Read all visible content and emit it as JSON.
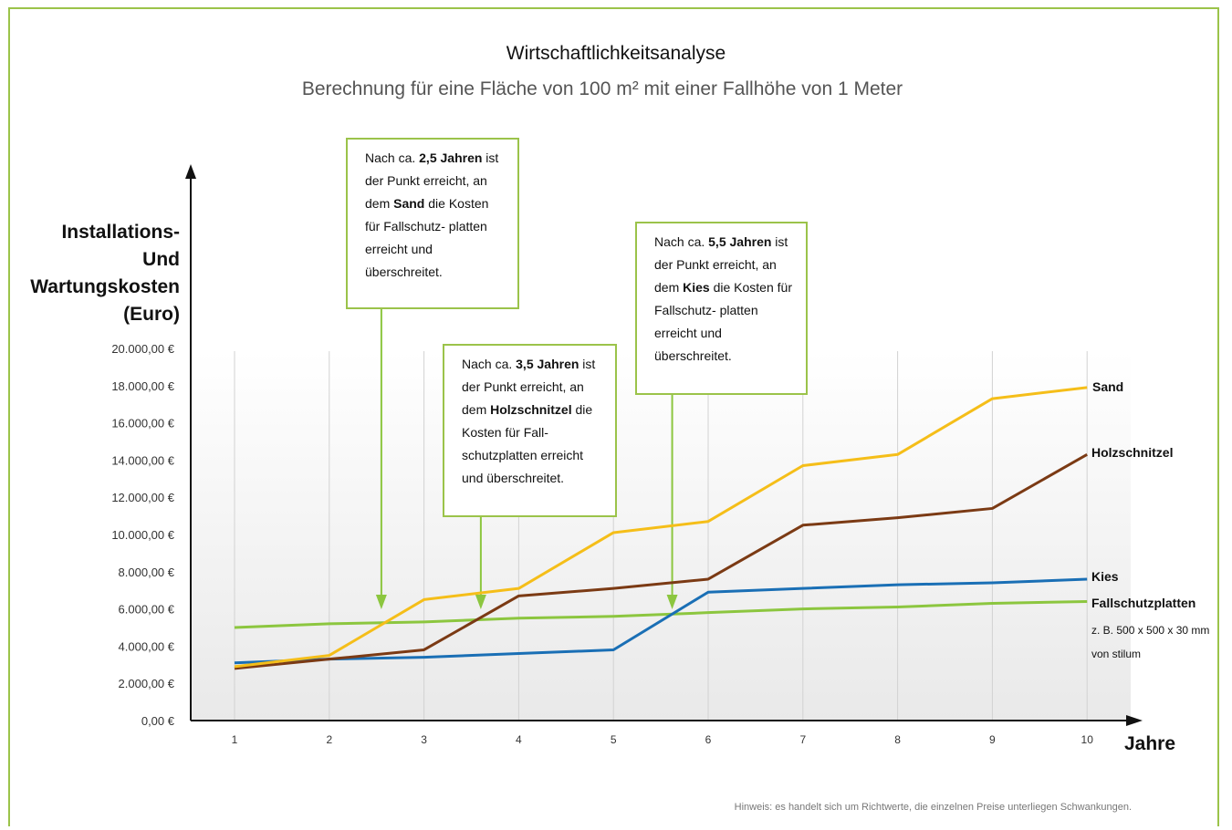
{
  "chart_data": {
    "type": "line",
    "title": "Wirtschaftlichkeitsanalyse",
    "subtitle": "Berechnung für eine Fläche von 100 m² mit einer Fallhöhe von 1 Meter",
    "ylabel_lines": [
      "Installations-",
      "Und",
      "Wartungskosten",
      "(Euro)"
    ],
    "xlabel": "Jahre",
    "x": [
      1,
      2,
      3,
      4,
      5,
      6,
      7,
      8,
      9,
      10
    ],
    "ylim": [
      0,
      20000
    ],
    "yticks": [
      "0,00 €",
      "2.000,00 €",
      "4.000,00 €",
      "6.000,00 €",
      "8.000,00 €",
      "10.000,00 €",
      "12.000,00 €",
      "14.000,00 €",
      "16.000,00 €",
      "18.000,00 €",
      "20.000,00 €"
    ],
    "grid": "vertical",
    "series": [
      {
        "name": "Sand",
        "color": "#f5be19",
        "values": [
          2900,
          3500,
          6500,
          7100,
          10100,
          10700,
          13700,
          14300,
          17300,
          17900
        ]
      },
      {
        "name": "Holzschnitzel",
        "color": "#7b3a14",
        "values": [
          2800,
          3300,
          3800,
          6700,
          7100,
          7600,
          10500,
          10900,
          11400,
          14300
        ]
      },
      {
        "name": "Kies",
        "color": "#1a6fb5",
        "values": [
          3100,
          3300,
          3400,
          3600,
          3800,
          6900,
          7100,
          7300,
          7400,
          7600
        ]
      },
      {
        "name": "Fallschutzplatten",
        "color": "#8cc63f",
        "values": [
          5000,
          5200,
          5300,
          5500,
          5600,
          5800,
          6000,
          6100,
          6300,
          6400
        ]
      }
    ],
    "annotations": [
      {
        "pre": "Nach ca. ",
        "bold": "2,5 Jahren",
        "post": "ist der Punkt erreicht, an dem ",
        "bold2": "Sand",
        "post2": " die Kosten für Fallschutz- platten erreicht und überschreitet.",
        "arrow_x": 2.55
      },
      {
        "pre": "Nach ca. ",
        "bold": "3,5 Jahren",
        "post": "ist der Punkt erreicht, an dem ",
        "bold2": "Holzschnitzel",
        "post2": " die Kosten für Fall- schutzplatten erreicht und überschreitet.",
        "arrow_x": 3.6
      },
      {
        "pre": "Nach ca. ",
        "bold": "5,5 Jahren",
        "post": "ist der Punkt erreicht, an dem ",
        "bold2": "Kies",
        "post2": " die Kosten für Fallschutz- platten erreicht und überschreitet.",
        "arrow_x": 5.62
      }
    ],
    "series_note": [
      "z. B. 500 x 500 x 30 mm",
      "von stilum"
    ]
  },
  "footer": {
    "hint": "Hinweis: es handelt sich um Richtwerte, die einzelnen Preise unterliegen Schwankungen."
  },
  "colors": {
    "frame": "#9bc34a",
    "annotation_border": "#9bc34a",
    "arrow": "#8cc63f"
  }
}
